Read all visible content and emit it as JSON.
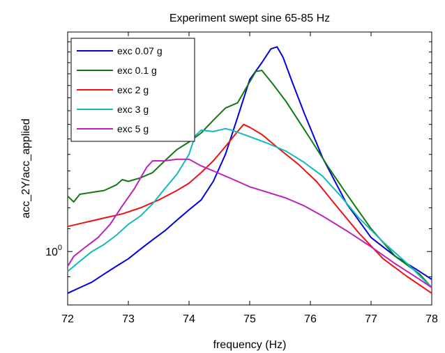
{
  "chart_data": {
    "type": "line",
    "title": "Experiment swept sine 65-85 Hz",
    "xlabel": "frequency (Hz)",
    "ylabel": "acc_2Y/acc_applied",
    "xlim": [
      72,
      78
    ],
    "ylim": [
      0.8,
      2.5
    ],
    "yscale": "log",
    "xticks": [
      72,
      73,
      74,
      75,
      76,
      77,
      78
    ],
    "xtick_labels": [
      "72",
      "73",
      "74",
      "75",
      "76",
      "77",
      "78"
    ],
    "ytick_label": {
      "base": "10",
      "exponent": "0",
      "value": 1.0
    },
    "legend_position": "top-left",
    "grid": false,
    "series": [
      {
        "name": "exc 0.07 g",
        "color": "#0000dd",
        "x": [
          72.0,
          72.2,
          72.4,
          72.6,
          72.8,
          73.0,
          73.2,
          73.4,
          73.6,
          73.8,
          74.0,
          74.2,
          74.4,
          74.6,
          74.8,
          75.0,
          75.2,
          75.35,
          75.45,
          75.55,
          75.7,
          75.9,
          76.2,
          76.6,
          77.0,
          77.4,
          77.8,
          78.0
        ],
        "y": [
          0.84,
          0.86,
          0.88,
          0.91,
          0.94,
          0.97,
          1.01,
          1.05,
          1.09,
          1.14,
          1.19,
          1.24,
          1.34,
          1.5,
          1.75,
          2.05,
          2.2,
          2.33,
          2.35,
          2.25,
          2.03,
          1.78,
          1.48,
          1.22,
          1.06,
          0.98,
          0.92,
          0.89
        ]
      },
      {
        "name": "exc 0.1 g",
        "color": "#117711",
        "x": [
          72.0,
          72.1,
          72.2,
          72.4,
          72.6,
          72.8,
          72.9,
          73.0,
          73.2,
          73.4,
          73.6,
          73.8,
          74.0,
          74.2,
          74.4,
          74.6,
          74.8,
          75.0,
          75.1,
          75.2,
          75.4,
          75.6,
          75.8,
          76.0,
          76.3,
          76.6,
          77.0,
          77.4,
          77.8,
          78.0
        ],
        "y": [
          1.26,
          1.23,
          1.27,
          1.28,
          1.29,
          1.32,
          1.35,
          1.34,
          1.36,
          1.39,
          1.46,
          1.53,
          1.58,
          1.64,
          1.73,
          1.82,
          1.86,
          2.03,
          2.12,
          2.13,
          2.0,
          1.87,
          1.73,
          1.6,
          1.42,
          1.27,
          1.1,
          0.98,
          0.91,
          0.86
        ]
      },
      {
        "name": "exc 2 g",
        "color": "#ee1111",
        "x": [
          72.0,
          72.3,
          72.6,
          72.9,
          73.2,
          73.5,
          73.8,
          74.0,
          74.2,
          74.4,
          74.6,
          74.8,
          74.9,
          75.0,
          75.2,
          75.5,
          75.8,
          76.1,
          76.4,
          76.8,
          77.2,
          77.6,
          78.0
        ],
        "y": [
          1.11,
          1.13,
          1.15,
          1.17,
          1.2,
          1.24,
          1.29,
          1.33,
          1.39,
          1.46,
          1.55,
          1.65,
          1.7,
          1.68,
          1.63,
          1.53,
          1.44,
          1.34,
          1.22,
          1.08,
          0.97,
          0.9,
          0.84
        ]
      },
      {
        "name": "exc 3 g",
        "color": "#11bbbb",
        "x": [
          72.0,
          72.2,
          72.4,
          72.6,
          72.8,
          73.0,
          73.2,
          73.4,
          73.6,
          73.8,
          74.0,
          74.1,
          74.2,
          74.4,
          74.6,
          74.7,
          74.9,
          75.1,
          75.3,
          75.6,
          75.9,
          76.2,
          76.5,
          76.8,
          77.2,
          77.6,
          78.0
        ],
        "y": [
          0.92,
          0.96,
          1.0,
          1.03,
          1.07,
          1.12,
          1.16,
          1.22,
          1.3,
          1.38,
          1.5,
          1.62,
          1.66,
          1.65,
          1.67,
          1.66,
          1.63,
          1.6,
          1.57,
          1.52,
          1.45,
          1.37,
          1.26,
          1.15,
          1.04,
          0.95,
          0.86
        ]
      },
      {
        "name": "exc 5 g",
        "color": "#bb22bb",
        "x": [
          72.0,
          72.1,
          72.3,
          72.5,
          72.7,
          72.9,
          73.1,
          73.3,
          73.4,
          73.6,
          73.8,
          74.0,
          74.2,
          74.4,
          74.6,
          74.8,
          75.0,
          75.3,
          75.6,
          75.9,
          76.2,
          76.6,
          77.0,
          77.4,
          77.8,
          78.0
        ],
        "y": [
          0.94,
          0.98,
          1.02,
          1.06,
          1.12,
          1.21,
          1.3,
          1.42,
          1.46,
          1.46,
          1.47,
          1.47,
          1.43,
          1.4,
          1.37,
          1.34,
          1.31,
          1.28,
          1.25,
          1.21,
          1.16,
          1.09,
          1.02,
          0.95,
          0.89,
          0.86
        ]
      }
    ]
  }
}
